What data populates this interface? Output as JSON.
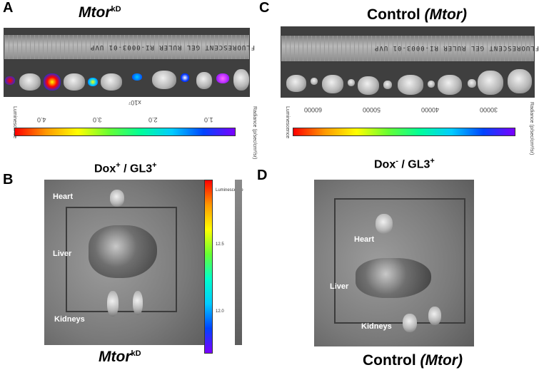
{
  "panel_a": {
    "letter": "A",
    "title_main": "Mtor",
    "title_sup": "kD",
    "ruler_text": "FLUORESCENT GEL RULER   RI-0003-01   UVP",
    "colorbar": {
      "scale_label": "x10⁷",
      "ticks": [
        "4.0",
        "3.0",
        "2.0",
        "1.0"
      ],
      "left_label": "Luminescence",
      "right_label": "Radiance (p/sec/cm²/sr)"
    }
  },
  "panel_c": {
    "letter": "C",
    "title_main": "Control",
    "title_italic": "(Mtor)",
    "ruler_text": "FLUORESCENT GEL RULER   RI-0003-01   UVP",
    "colorbar": {
      "ticks": [
        "60000",
        "50000",
        "40000",
        "30000"
      ],
      "left_label": "Luminescence",
      "right_label": "Radiance (p/sec/cm²/sr)"
    }
  },
  "panel_b": {
    "letter": "B",
    "subtitle_dox": "Dox",
    "subtitle_dox_sup": "+",
    "subtitle_gl3": " / GL3",
    "subtitle_gl3_sup": "+",
    "labels": {
      "heart": "Heart",
      "liver": "Liver",
      "kidneys": "Kidneys"
    },
    "vbar_title": "Luminescence",
    "vbar_ticks": [
      "12.5",
      "12.0"
    ],
    "caption_main": "Mtor",
    "caption_sup": "kD"
  },
  "panel_d": {
    "letter": "D",
    "subtitle_dox": "Dox",
    "subtitle_dox_sup": "-",
    "subtitle_gl3": " / GL3",
    "subtitle_gl3_sup": "+",
    "labels": {
      "heart": "Heart",
      "liver": "Liver",
      "kidneys": "Kidneys"
    },
    "caption_main": "Control",
    "caption_italic": "(Mtor)"
  }
}
